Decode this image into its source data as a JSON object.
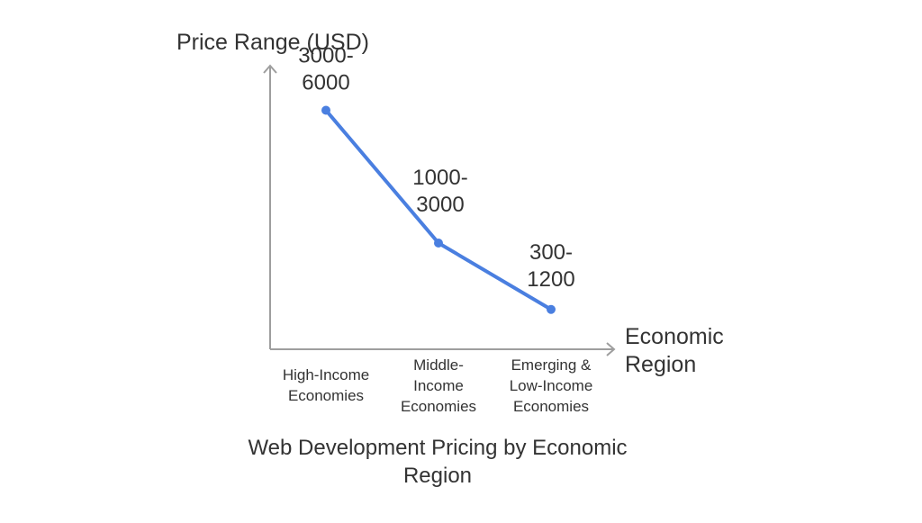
{
  "chart_data": {
    "type": "line",
    "title": [
      "Web Development Pricing by Economic",
      "Region"
    ],
    "xlabel": [
      "Economic",
      "Region"
    ],
    "ylabel": "Price Range (USD)",
    "categories": [
      [
        "High-Income",
        "Economies"
      ],
      [
        "Middle-",
        "Income",
        "Economies"
      ],
      [
        "Emerging &",
        "Low-Income",
        "Economies"
      ]
    ],
    "series": [
      {
        "name": "Price Range",
        "values": [
          4500,
          2000,
          750
        ],
        "labels": [
          [
            "3000-",
            "6000"
          ],
          [
            "1000-",
            "3000"
          ],
          [
            "300-",
            "1200"
          ]
        ]
      }
    ],
    "ylim": [
      0,
      6000
    ],
    "grid": false,
    "line_color": "#4a7fe0",
    "axis_color": "#9e9e9e"
  }
}
